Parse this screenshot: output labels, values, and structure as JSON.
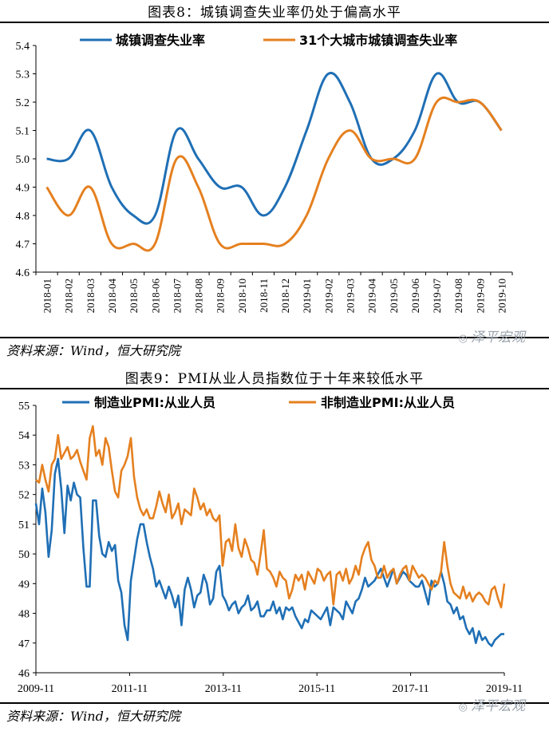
{
  "chart1": {
    "title": "图表8：城镇调查失业率仍处于偏高水平",
    "source": "资料来源：Wind，恒大研究院",
    "watermark": "泽平宏观",
    "chart_data": {
      "type": "line",
      "categories": [
        "2018-01",
        "2018-02",
        "2018-03",
        "2018-04",
        "2018-05",
        "2018-06",
        "2018-07",
        "2018-08",
        "2018-09",
        "2018-10",
        "2018-11",
        "2018-12",
        "2019-01",
        "2019-02",
        "2019-03",
        "2019-04",
        "2019-05",
        "2019-06",
        "2019-07",
        "2019-08",
        "2019-09",
        "2019-10"
      ],
      "series": [
        {
          "name": "城镇调查失业率",
          "color": "#1f6fb5",
          "values": [
            5.0,
            5.0,
            5.1,
            4.9,
            4.8,
            4.8,
            5.1,
            5.0,
            4.9,
            4.9,
            4.8,
            4.9,
            5.1,
            5.3,
            5.2,
            5.0,
            5.0,
            5.1,
            5.3,
            5.2,
            5.2,
            5.1
          ]
        },
        {
          "name": "31个大城市城镇调查失业率",
          "color": "#e5801f",
          "values": [
            4.9,
            4.8,
            4.9,
            4.7,
            4.7,
            4.7,
            5.0,
            4.9,
            4.7,
            4.7,
            4.7,
            4.7,
            4.8,
            5.0,
            5.1,
            5.0,
            5.0,
            5.0,
            5.2,
            5.2,
            5.2,
            5.1
          ]
        }
      ],
      "ylim": [
        4.6,
        5.4
      ],
      "yticks": [
        "4.6",
        "4.7",
        "4.8",
        "4.9",
        "5.0",
        "5.1",
        "5.2",
        "5.3",
        "5.4"
      ],
      "legend": "top"
    }
  },
  "chart2": {
    "title": "图表9：PMI从业人员指数位于十年来较低水平",
    "source": "资料来源：Wind，恒大研究院",
    "watermark": "泽平宏观",
    "chart_data": {
      "type": "line",
      "x_start": "2009-11",
      "x_end": "2019-11",
      "xticks": [
        "2009-11",
        "2011-11",
        "2013-11",
        "2015-11",
        "2017-11",
        "2019-11"
      ],
      "series": [
        {
          "name": "制造业PMI:从业人员",
          "color": "#1f6fb5",
          "values": [
            51.7,
            51.0,
            52.2,
            51.4,
            49.9,
            50.8,
            52.7,
            53.2,
            52.2,
            50.7,
            52.3,
            51.8,
            52.4,
            52.0,
            51.9,
            50.2,
            48.9,
            48.9,
            51.8,
            51.8,
            50.6,
            50.0,
            49.9,
            50.4,
            50.1,
            50.3,
            49.1,
            48.7,
            47.6,
            47.1,
            49.1,
            49.8,
            50.5,
            51.0,
            51.0,
            50.4,
            49.9,
            49.5,
            48.9,
            49.1,
            48.8,
            48.5,
            48.9,
            48.6,
            48.2,
            48.6,
            47.6,
            48.8,
            49.2,
            48.8,
            48.2,
            48.6,
            48.7,
            49.3,
            49.0,
            48.3,
            48.5,
            49.4,
            49.6,
            48.6,
            48.4,
            48.1,
            48.3,
            48.4,
            48.0,
            48.2,
            48.3,
            48.6,
            48.1,
            48.2,
            48.4,
            47.9,
            47.9,
            48.1,
            48.1,
            48.4,
            48.0,
            48.2,
            47.8,
            48.2,
            48.1,
            48.2,
            47.9,
            47.7,
            47.5,
            47.8,
            47.7,
            48.1,
            48.0,
            47.9,
            47.8,
            48.0,
            48.2,
            47.6,
            48.2,
            48.1,
            48.0,
            47.8,
            48.4,
            48.2,
            48.0,
            48.4,
            48.5,
            48.8,
            49.2,
            48.9,
            49.0,
            49.1,
            49.3,
            49.5,
            49.2,
            48.9,
            49.2,
            49.5,
            49.0,
            49.2,
            49.4,
            49.3,
            49.1,
            49.0,
            48.9,
            48.9,
            49.1,
            48.7,
            48.3,
            49.1,
            48.9,
            49.0,
            49.4,
            49.0,
            48.4,
            48.3,
            48.0,
            48.2,
            47.8,
            47.9,
            47.5,
            47.3,
            47.5,
            47.0,
            47.4,
            47.1,
            47.2,
            47.0,
            46.9,
            47.1,
            47.2,
            47.3,
            47.3
          ]
        },
        {
          "name": "非制造业PMI:从业人员",
          "color": "#e5801f",
          "values": [
            52.5,
            52.4,
            53.0,
            52.5,
            52.1,
            53.0,
            53.2,
            54.0,
            53.2,
            53.4,
            53.6,
            53.2,
            53.3,
            53.5,
            53.1,
            52.8,
            52.5,
            53.9,
            54.3,
            53.3,
            53.5,
            53.0,
            53.9,
            53.6,
            52.8,
            52.1,
            51.9,
            52.8,
            53.0,
            53.3,
            53.9,
            52.6,
            51.9,
            51.5,
            51.3,
            51.5,
            51.2,
            51.2,
            51.6,
            52.1,
            51.7,
            51.4,
            52.0,
            51.2,
            51.4,
            51.7,
            51.0,
            51.5,
            51.4,
            51.3,
            52.2,
            51.9,
            51.5,
            51.7,
            51.3,
            51.5,
            51.2,
            51.1,
            51.3,
            49.6,
            50.4,
            50.5,
            50.1,
            51.0,
            50.2,
            49.9,
            50.5,
            50.2,
            49.8,
            49.7,
            49.3,
            50.0,
            50.8,
            49.5,
            49.4,
            49.2,
            48.9,
            49.4,
            49.2,
            49.1,
            48.5,
            48.8,
            49.3,
            49.1,
            49.3,
            48.8,
            49.4,
            49.2,
            49.0,
            49.5,
            49.4,
            49.1,
            49.3,
            49.4,
            48.3,
            49.3,
            49.4,
            49.1,
            49.5,
            49.0,
            49.2,
            49.6,
            49.3,
            49.9,
            50.2,
            50.4,
            49.8,
            49.6,
            49.2,
            49.2,
            49.6,
            49.2,
            49.4,
            49.5,
            49.0,
            49.3,
            49.5,
            49.6,
            49.1,
            49.6,
            49.4,
            49.2,
            49.3,
            49.2,
            49.0,
            48.8,
            49.1,
            49.0,
            49.4,
            50.4,
            49.6,
            49.0,
            48.7,
            48.6,
            48.5,
            48.9,
            48.5,
            48.7,
            48.4,
            48.6,
            48.7,
            48.6,
            48.4,
            48.3,
            48.8,
            48.9,
            48.5,
            48.2,
            49.0
          ]
        }
      ],
      "ylim": [
        46,
        55
      ],
      "yticks": [
        "46",
        "47",
        "48",
        "49",
        "50",
        "51",
        "52",
        "53",
        "54",
        "55"
      ],
      "legend": "top"
    }
  }
}
